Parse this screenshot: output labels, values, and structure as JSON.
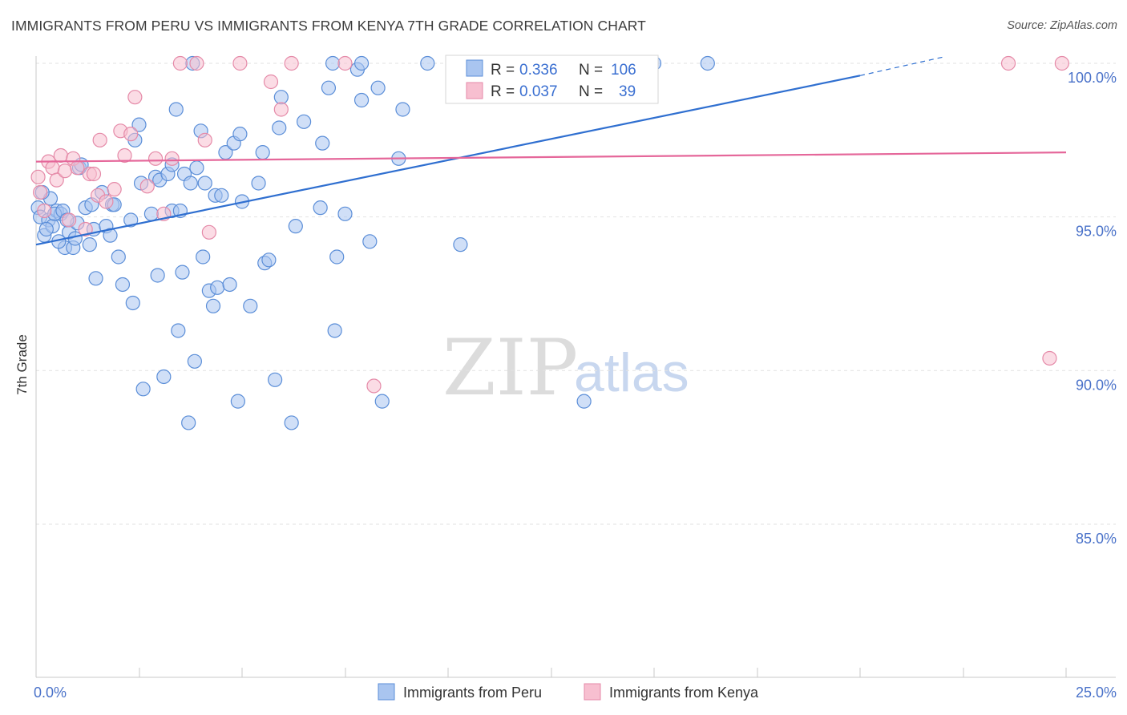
{
  "title": "IMMIGRANTS FROM PERU VS IMMIGRANTS FROM KENYA 7TH GRADE CORRELATION CHART",
  "source": "Source: ZipAtlas.com",
  "watermark": {
    "zip": "ZIP",
    "atlas": "atlas"
  },
  "colors": {
    "peru_fill": "#a9c5f0",
    "peru_stroke": "#5b8ed8",
    "peru_line": "#2f6fd0",
    "kenya_fill": "#f7bfd0",
    "kenya_stroke": "#e58aa8",
    "kenya_line": "#e5679a",
    "axis_label": "#4a72c9",
    "grid": "#e2e2e2"
  },
  "legend_box": {
    "peru": {
      "r_label": "R = ",
      "r_value": "0.336",
      "n_label": "N = ",
      "n_value": "106"
    },
    "kenya": {
      "r_label": "R = ",
      "r_value": "0.037",
      "n_label": "N = ",
      "n_value": "39"
    }
  },
  "chart_data": {
    "type": "scatter",
    "title": "IMMIGRANTS FROM PERU VS IMMIGRANTS FROM KENYA 7TH GRADE CORRELATION CHART",
    "xlabel": "",
    "ylabel": "7th Grade",
    "xlim": [
      0,
      25
    ],
    "ylim": [
      80.5,
      100.9
    ],
    "x_tick_labels": [
      "0.0%",
      "25.0%"
    ],
    "y_ticks": [
      85,
      90,
      95,
      100
    ],
    "y_tick_labels": [
      "85.0%",
      "90.0%",
      "95.0%",
      "100.0%"
    ],
    "grid": true,
    "legend_position": "bottom",
    "series": [
      {
        "name": "Immigrants from Peru",
        "r": 0.336,
        "n": 106,
        "trend": {
          "x": [
            0,
            20
          ],
          "y": [
            94.1,
            99.6
          ],
          "dashed_to": [
            22.0,
            100.2
          ]
        },
        "points": [
          [
            0.05,
            95.3
          ],
          [
            0.1,
            95.0
          ],
          [
            0.2,
            94.4
          ],
          [
            0.3,
            94.9
          ],
          [
            0.35,
            95.6
          ],
          [
            0.4,
            94.7
          ],
          [
            0.5,
            95.2
          ],
          [
            0.6,
            95.1
          ],
          [
            0.7,
            94.0
          ],
          [
            0.8,
            94.5
          ],
          [
            0.9,
            94.0
          ],
          [
            1.0,
            94.8
          ],
          [
            1.05,
            96.6
          ],
          [
            1.1,
            96.7
          ],
          [
            1.2,
            95.3
          ],
          [
            1.3,
            94.1
          ],
          [
            1.35,
            95.4
          ],
          [
            1.4,
            94.6
          ],
          [
            1.45,
            93.0
          ],
          [
            1.6,
            95.8
          ],
          [
            1.7,
            94.7
          ],
          [
            1.8,
            94.4
          ],
          [
            1.85,
            95.4
          ],
          [
            1.9,
            95.4
          ],
          [
            2.0,
            93.7
          ],
          [
            2.1,
            92.8
          ],
          [
            2.3,
            94.9
          ],
          [
            2.35,
            92.2
          ],
          [
            2.4,
            97.5
          ],
          [
            2.5,
            98.0
          ],
          [
            2.55,
            96.1
          ],
          [
            2.6,
            89.4
          ],
          [
            2.8,
            95.1
          ],
          [
            2.9,
            96.3
          ],
          [
            2.95,
            93.1
          ],
          [
            3.0,
            96.2
          ],
          [
            3.1,
            89.8
          ],
          [
            3.2,
            96.4
          ],
          [
            3.3,
            96.7
          ],
          [
            3.3,
            95.2
          ],
          [
            3.4,
            98.5
          ],
          [
            3.45,
            91.3
          ],
          [
            3.5,
            95.2
          ],
          [
            3.55,
            93.2
          ],
          [
            3.6,
            96.4
          ],
          [
            3.7,
            88.3
          ],
          [
            3.75,
            96.1
          ],
          [
            3.8,
            100.0
          ],
          [
            3.85,
            90.3
          ],
          [
            3.9,
            96.6
          ],
          [
            4.0,
            97.8
          ],
          [
            4.05,
            93.7
          ],
          [
            4.1,
            96.1
          ],
          [
            4.2,
            92.6
          ],
          [
            4.3,
            92.1
          ],
          [
            4.35,
            95.7
          ],
          [
            4.4,
            92.7
          ],
          [
            4.5,
            95.7
          ],
          [
            4.6,
            97.1
          ],
          [
            4.7,
            92.8
          ],
          [
            4.8,
            97.4
          ],
          [
            4.9,
            89.0
          ],
          [
            4.95,
            97.7
          ],
          [
            5.0,
            95.5
          ],
          [
            5.2,
            92.1
          ],
          [
            5.4,
            96.1
          ],
          [
            5.5,
            97.1
          ],
          [
            5.55,
            93.5
          ],
          [
            5.65,
            93.6
          ],
          [
            5.8,
            89.7
          ],
          [
            5.9,
            97.9
          ],
          [
            5.95,
            98.9
          ],
          [
            6.2,
            88.3
          ],
          [
            6.3,
            94.7
          ],
          [
            6.5,
            98.1
          ],
          [
            6.9,
            95.3
          ],
          [
            6.95,
            97.4
          ],
          [
            7.1,
            99.2
          ],
          [
            7.2,
            100.0
          ],
          [
            7.3,
            93.7
          ],
          [
            7.25,
            91.3
          ],
          [
            7.5,
            95.1
          ],
          [
            7.8,
            99.8
          ],
          [
            7.9,
            98.8
          ],
          [
            7.9,
            100.0
          ],
          [
            8.1,
            94.2
          ],
          [
            8.3,
            99.2
          ],
          [
            8.4,
            89.0
          ],
          [
            8.8,
            96.9
          ],
          [
            8.9,
            98.5
          ],
          [
            9.5,
            100.0
          ],
          [
            10.2,
            100.0
          ],
          [
            10.3,
            94.1
          ],
          [
            11.3,
            100.0
          ],
          [
            12.6,
            100.0
          ],
          [
            13.3,
            89.0
          ],
          [
            14.7,
            100.0
          ],
          [
            15.0,
            100.0
          ],
          [
            16.3,
            100.0
          ],
          [
            0.15,
            95.8
          ],
          [
            0.25,
            94.6
          ],
          [
            0.45,
            95.1
          ],
          [
            0.55,
            94.2
          ],
          [
            0.65,
            95.2
          ],
          [
            0.75,
            94.9
          ],
          [
            0.95,
            94.3
          ]
        ]
      },
      {
        "name": "Immigrants from Kenya",
        "r": 0.037,
        "n": 39,
        "trend": {
          "x": [
            0,
            25
          ],
          "y": [
            96.8,
            97.1
          ]
        },
        "points": [
          [
            0.05,
            96.3
          ],
          [
            0.1,
            95.8
          ],
          [
            0.2,
            95.2
          ],
          [
            0.3,
            96.8
          ],
          [
            0.4,
            96.6
          ],
          [
            0.5,
            96.2
          ],
          [
            0.6,
            97.0
          ],
          [
            0.7,
            96.5
          ],
          [
            0.8,
            94.9
          ],
          [
            0.9,
            96.9
          ],
          [
            1.0,
            96.6
          ],
          [
            1.2,
            94.6
          ],
          [
            1.3,
            96.4
          ],
          [
            1.4,
            96.4
          ],
          [
            1.5,
            95.7
          ],
          [
            1.55,
            97.5
          ],
          [
            1.7,
            95.5
          ],
          [
            1.9,
            95.9
          ],
          [
            2.05,
            97.8
          ],
          [
            2.15,
            97.0
          ],
          [
            2.3,
            97.7
          ],
          [
            2.4,
            98.9
          ],
          [
            2.7,
            96.0
          ],
          [
            2.9,
            96.9
          ],
          [
            3.1,
            95.1
          ],
          [
            3.3,
            96.9
          ],
          [
            3.5,
            100.0
          ],
          [
            3.9,
            100.0
          ],
          [
            4.1,
            97.5
          ],
          [
            4.2,
            94.5
          ],
          [
            4.95,
            100.0
          ],
          [
            5.7,
            99.4
          ],
          [
            5.95,
            98.5
          ],
          [
            6.2,
            100.0
          ],
          [
            7.5,
            100.0
          ],
          [
            8.2,
            89.5
          ],
          [
            23.6,
            100.0
          ],
          [
            24.9,
            100.0
          ],
          [
            24.6,
            90.4
          ]
        ]
      }
    ]
  }
}
